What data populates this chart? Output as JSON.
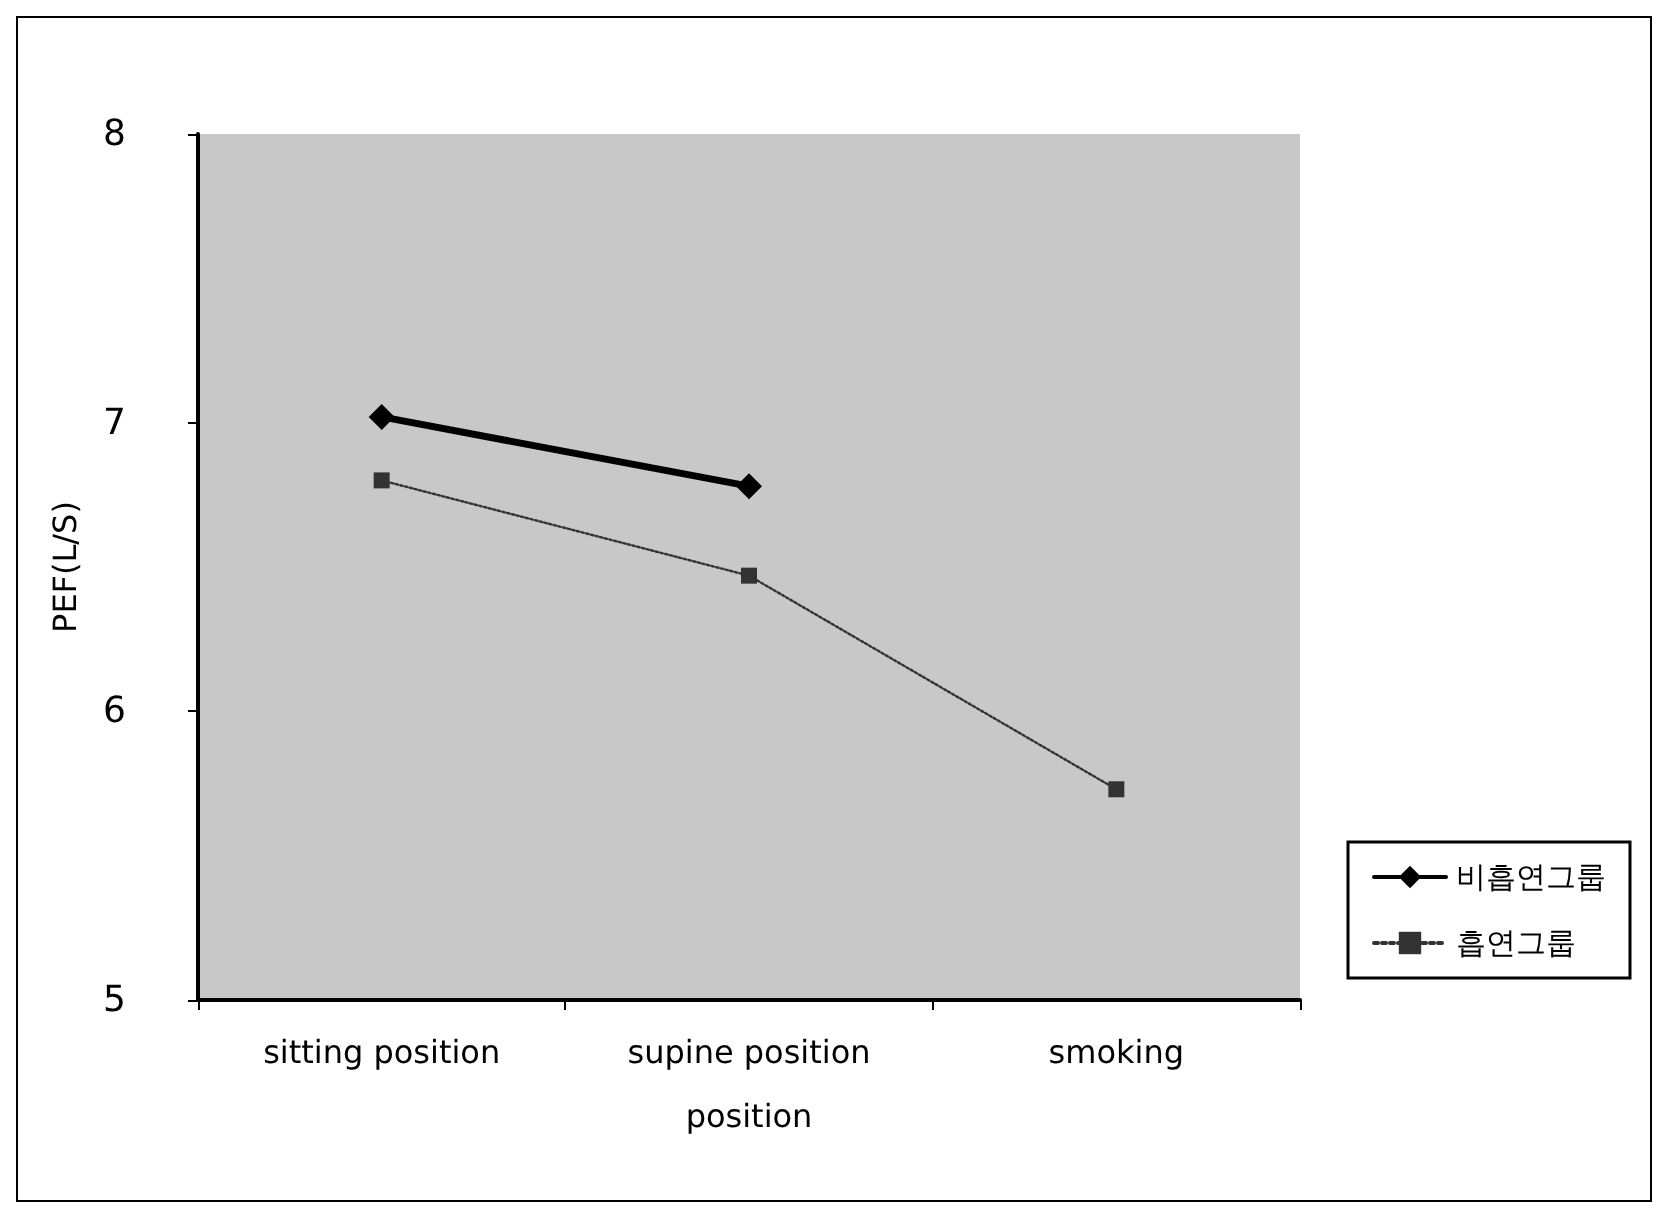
{
  "chart_data": {
    "type": "line",
    "xlabel": "position",
    "ylabel": "PEF(L/S)",
    "categories": [
      "sitting position",
      "supine position",
      "smoking"
    ],
    "series": [
      {
        "name": "비흡연그룹",
        "color": "#000000",
        "values": [
          7.02,
          6.78,
          null
        ],
        "marker": "diamond",
        "line_style": "solid"
      },
      {
        "name": "흡연그룹",
        "color": "#333333",
        "values": [
          6.8,
          6.47,
          5.73
        ],
        "marker": "square",
        "line_style": "dotted"
      }
    ],
    "ylim": [
      5,
      8
    ],
    "yticks": [
      5,
      6,
      7,
      8
    ],
    "grid": false,
    "legend": "right"
  }
}
